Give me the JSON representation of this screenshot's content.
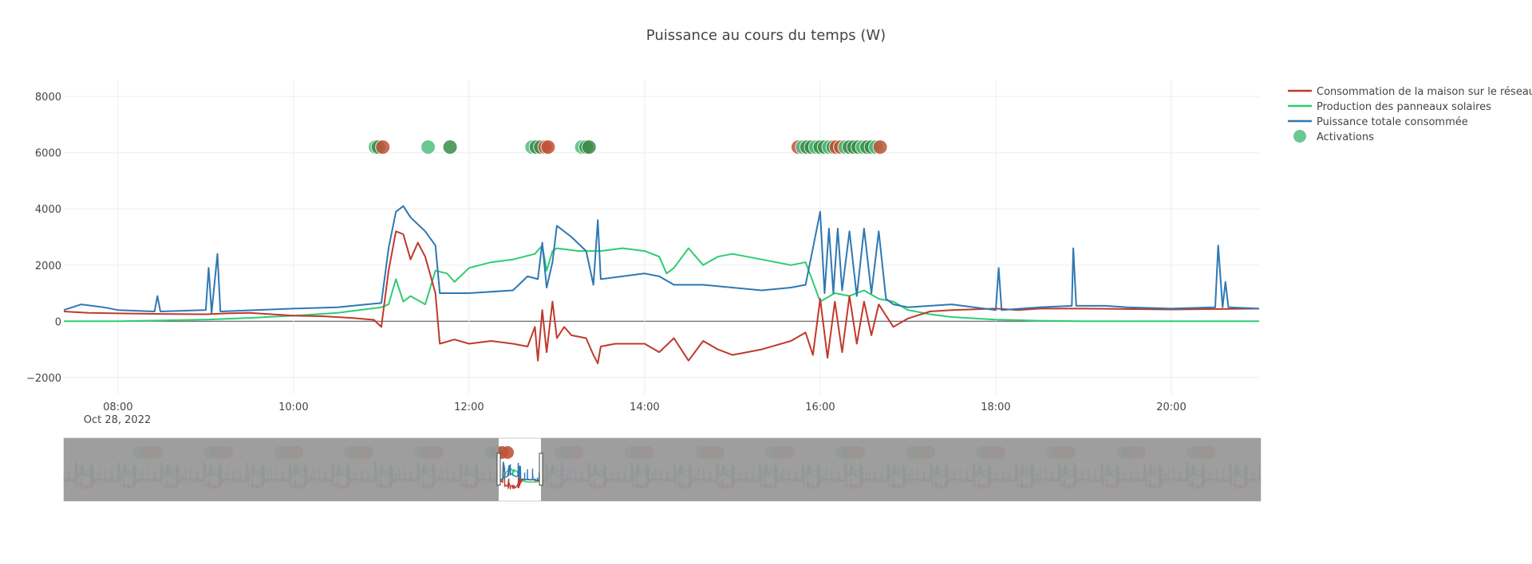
{
  "chart_data": {
    "type": "line",
    "title": "Puissance au cours du temps (W)",
    "xlabel": "",
    "ylabel": "",
    "date_label": "Oct 28, 2022",
    "x_range": [
      "07:23",
      "21:00"
    ],
    "ylim": [
      -2600,
      8600
    ],
    "x_ticks": [
      "08:00",
      "10:00",
      "12:00",
      "14:00",
      "16:00",
      "18:00",
      "20:00"
    ],
    "y_ticks": [
      -2000,
      0,
      2000,
      4000,
      6000,
      8000
    ],
    "y_tick_labels": [
      "−2000",
      "0",
      "2000",
      "4000",
      "6000",
      "8000"
    ],
    "grid": true,
    "legend_position": "top-right",
    "colors": {
      "grid_consumption": "#c0392b",
      "solar": "#2ecc71",
      "total": "#2e78b3",
      "activation_green": "#52be80",
      "activation_dark": "#3c8d4a",
      "activation_red": "#c0543a",
      "rangeslider_bg": "#999999"
    },
    "series": [
      {
        "name": "Consommation de la maison sur le réseau",
        "color": "#c0392b",
        "points": [
          [
            "07:23",
            350
          ],
          [
            "07:40",
            300
          ],
          [
            "08:00",
            280
          ],
          [
            "08:30",
            260
          ],
          [
            "09:00",
            250
          ],
          [
            "09:15",
            280
          ],
          [
            "09:30",
            300
          ],
          [
            "10:00",
            200
          ],
          [
            "10:20",
            180
          ],
          [
            "10:40",
            120
          ],
          [
            "10:55",
            50
          ],
          [
            "11:00",
            -200
          ],
          [
            "11:05",
            1800
          ],
          [
            "11:10",
            3200
          ],
          [
            "11:15",
            3100
          ],
          [
            "11:20",
            2200
          ],
          [
            "11:25",
            2800
          ],
          [
            "11:30",
            2300
          ],
          [
            "11:37",
            1000
          ],
          [
            "11:40",
            -800
          ],
          [
            "11:50",
            -650
          ],
          [
            "12:00",
            -800
          ],
          [
            "12:15",
            -700
          ],
          [
            "12:30",
            -800
          ],
          [
            "12:40",
            -900
          ],
          [
            "12:45",
            -200
          ],
          [
            "12:47",
            -1400
          ],
          [
            "12:50",
            400
          ],
          [
            "12:53",
            -1100
          ],
          [
            "12:57",
            700
          ],
          [
            "13:00",
            -600
          ],
          [
            "13:05",
            -200
          ],
          [
            "13:10",
            -500
          ],
          [
            "13:20",
            -600
          ],
          [
            "13:25",
            -1200
          ],
          [
            "13:28",
            -1500
          ],
          [
            "13:30",
            -900
          ],
          [
            "13:40",
            -800
          ],
          [
            "14:00",
            -800
          ],
          [
            "14:10",
            -1100
          ],
          [
            "14:20",
            -600
          ],
          [
            "14:30",
            -1400
          ],
          [
            "14:40",
            -700
          ],
          [
            "14:50",
            -1000
          ],
          [
            "15:00",
            -1200
          ],
          [
            "15:20",
            -1000
          ],
          [
            "15:40",
            -700
          ],
          [
            "15:50",
            -400
          ],
          [
            "15:55",
            -1200
          ],
          [
            "16:00",
            800
          ],
          [
            "16:05",
            -1300
          ],
          [
            "16:10",
            700
          ],
          [
            "16:15",
            -1100
          ],
          [
            "16:20",
            900
          ],
          [
            "16:25",
            -800
          ],
          [
            "16:30",
            700
          ],
          [
            "16:35",
            -500
          ],
          [
            "16:40",
            600
          ],
          [
            "16:50",
            -200
          ],
          [
            "17:00",
            100
          ],
          [
            "17:15",
            350
          ],
          [
            "17:30",
            400
          ],
          [
            "18:00",
            450
          ],
          [
            "18:15",
            400
          ],
          [
            "18:30",
            450
          ],
          [
            "19:00",
            450
          ],
          [
            "20:00",
            420
          ],
          [
            "21:00",
            450
          ]
        ]
      },
      {
        "name": "Production des panneaux solaires",
        "color": "#2ecc71",
        "points": [
          [
            "07:23",
            0
          ],
          [
            "08:00",
            0
          ],
          [
            "08:30",
            30
          ],
          [
            "09:00",
            60
          ],
          [
            "09:30",
            120
          ],
          [
            "10:00",
            200
          ],
          [
            "10:30",
            300
          ],
          [
            "10:45",
            400
          ],
          [
            "11:00",
            500
          ],
          [
            "11:05",
            600
          ],
          [
            "11:10",
            1500
          ],
          [
            "11:15",
            700
          ],
          [
            "11:20",
            900
          ],
          [
            "11:30",
            600
          ],
          [
            "11:37",
            1800
          ],
          [
            "11:45",
            1700
          ],
          [
            "11:50",
            1400
          ],
          [
            "12:00",
            1900
          ],
          [
            "12:15",
            2100
          ],
          [
            "12:30",
            2200
          ],
          [
            "12:45",
            2400
          ],
          [
            "12:50",
            2700
          ],
          [
            "12:53",
            1800
          ],
          [
            "12:57",
            2500
          ],
          [
            "13:00",
            2600
          ],
          [
            "13:15",
            2500
          ],
          [
            "13:30",
            2500
          ],
          [
            "13:45",
            2600
          ],
          [
            "14:00",
            2500
          ],
          [
            "14:10",
            2300
          ],
          [
            "14:15",
            1700
          ],
          [
            "14:20",
            1900
          ],
          [
            "14:30",
            2600
          ],
          [
            "14:40",
            2000
          ],
          [
            "14:50",
            2300
          ],
          [
            "15:00",
            2400
          ],
          [
            "15:20",
            2200
          ],
          [
            "15:40",
            2000
          ],
          [
            "15:50",
            2100
          ],
          [
            "15:55",
            1400
          ],
          [
            "16:00",
            700
          ],
          [
            "16:10",
            1000
          ],
          [
            "16:20",
            900
          ],
          [
            "16:30",
            1100
          ],
          [
            "16:40",
            800
          ],
          [
            "16:50",
            700
          ],
          [
            "17:00",
            400
          ],
          [
            "17:15",
            250
          ],
          [
            "17:30",
            150
          ],
          [
            "18:00",
            60
          ],
          [
            "18:30",
            20
          ],
          [
            "19:00",
            0
          ],
          [
            "21:00",
            0
          ]
        ]
      },
      {
        "name": "Puissance totale consommée",
        "color": "#2e78b3",
        "points": [
          [
            "07:23",
            400
          ],
          [
            "07:35",
            600
          ],
          [
            "07:50",
            500
          ],
          [
            "08:00",
            400
          ],
          [
            "08:25",
            350
          ],
          [
            "08:27",
            900
          ],
          [
            "08:29",
            350
          ],
          [
            "09:00",
            400
          ],
          [
            "09:02",
            1900
          ],
          [
            "09:04",
            300
          ],
          [
            "09:08",
            2400
          ],
          [
            "09:10",
            350
          ],
          [
            "10:00",
            450
          ],
          [
            "10:30",
            500
          ],
          [
            "10:50",
            600
          ],
          [
            "11:00",
            650
          ],
          [
            "11:05",
            2600
          ],
          [
            "11:10",
            3900
          ],
          [
            "11:15",
            4100
          ],
          [
            "11:20",
            3700
          ],
          [
            "11:30",
            3200
          ],
          [
            "11:37",
            2700
          ],
          [
            "11:40",
            1000
          ],
          [
            "12:00",
            1000
          ],
          [
            "12:30",
            1100
          ],
          [
            "12:40",
            1600
          ],
          [
            "12:47",
            1500
          ],
          [
            "12:50",
            2800
          ],
          [
            "12:53",
            1200
          ],
          [
            "12:57",
            2100
          ],
          [
            "13:00",
            3400
          ],
          [
            "13:10",
            3000
          ],
          [
            "13:20",
            2500
          ],
          [
            "13:25",
            1300
          ],
          [
            "13:28",
            3600
          ],
          [
            "13:30",
            1500
          ],
          [
            "14:00",
            1700
          ],
          [
            "14:10",
            1600
          ],
          [
            "14:20",
            1300
          ],
          [
            "14:40",
            1300
          ],
          [
            "15:00",
            1200
          ],
          [
            "15:20",
            1100
          ],
          [
            "15:40",
            1200
          ],
          [
            "15:50",
            1300
          ],
          [
            "15:55",
            2600
          ],
          [
            "16:00",
            3900
          ],
          [
            "16:03",
            1000
          ],
          [
            "16:06",
            3300
          ],
          [
            "16:09",
            1000
          ],
          [
            "16:12",
            3300
          ],
          [
            "16:15",
            1100
          ],
          [
            "16:20",
            3200
          ],
          [
            "16:25",
            900
          ],
          [
            "16:30",
            3300
          ],
          [
            "16:35",
            1000
          ],
          [
            "16:40",
            3200
          ],
          [
            "16:45",
            800
          ],
          [
            "16:50",
            600
          ],
          [
            "17:00",
            500
          ],
          [
            "17:15",
            550
          ],
          [
            "17:30",
            600
          ],
          [
            "18:00",
            400
          ],
          [
            "18:02",
            1900
          ],
          [
            "18:04",
            400
          ],
          [
            "18:30",
            500
          ],
          [
            "18:52",
            550
          ],
          [
            "18:53",
            2600
          ],
          [
            "18:55",
            550
          ],
          [
            "19:15",
            550
          ],
          [
            "19:30",
            500
          ],
          [
            "20:00",
            450
          ],
          [
            "20:30",
            500
          ],
          [
            "20:32",
            2700
          ],
          [
            "20:35",
            500
          ],
          [
            "20:37",
            1400
          ],
          [
            "20:39",
            500
          ],
          [
            "21:00",
            450
          ]
        ]
      }
    ],
    "activations": {
      "name": "Activations",
      "y": 6200,
      "points": [
        [
          "10:56",
          "#52be80"
        ],
        [
          "10:58",
          "#3c8d4a"
        ],
        [
          "11:01",
          "#c0543a"
        ],
        [
          "11:32",
          "#52be80"
        ],
        [
          "11:47",
          "#3c8d4a"
        ],
        [
          "12:43",
          "#52be80"
        ],
        [
          "12:46",
          "#3c8d4a"
        ],
        [
          "12:49",
          "#3c8d4a"
        ],
        [
          "12:52",
          "#c0543a"
        ],
        [
          "12:54",
          "#c0543a"
        ],
        [
          "13:17",
          "#52be80"
        ],
        [
          "13:20",
          "#3c8d4a"
        ],
        [
          "13:22",
          "#3c8d4a"
        ],
        [
          "15:45",
          "#c0543a"
        ],
        [
          "15:48",
          "#52be80"
        ],
        [
          "15:51",
          "#3c8d4a"
        ],
        [
          "15:54",
          "#3c8d4a"
        ],
        [
          "15:57",
          "#52be80"
        ],
        [
          "16:00",
          "#3c8d4a"
        ],
        [
          "16:03",
          "#3c8d4a"
        ],
        [
          "16:06",
          "#52be80"
        ],
        [
          "16:09",
          "#3c8d4a"
        ],
        [
          "16:11",
          "#c0543a"
        ],
        [
          "16:14",
          "#c0543a"
        ],
        [
          "16:17",
          "#52be80"
        ],
        [
          "16:20",
          "#3c8d4a"
        ],
        [
          "16:23",
          "#3c8d4a"
        ],
        [
          "16:26",
          "#3c8d4a"
        ],
        [
          "16:29",
          "#52be80"
        ],
        [
          "16:32",
          "#3c8d4a"
        ],
        [
          "16:35",
          "#3c8d4a"
        ],
        [
          "16:38",
          "#52be80"
        ],
        [
          "16:41",
          "#c0543a"
        ]
      ]
    },
    "rangeslider": {
      "visible_window": [
        "12:05",
        "13:15"
      ],
      "activation_clusters": [
        "08:30",
        "09:50",
        "11:10",
        "12:25",
        "13:40",
        "15:05",
        "16:20",
        "17:35",
        "18:55",
        "20:10",
        "21:30",
        "22:45",
        "00:05",
        "01:25",
        "02:40",
        "03:55"
      ]
    }
  }
}
